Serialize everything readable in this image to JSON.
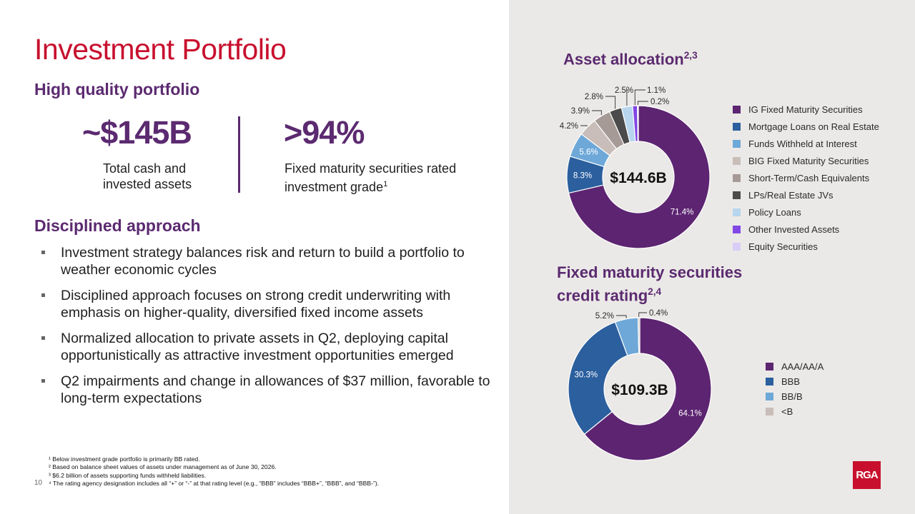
{
  "header": {
    "title": "Investment Portfolio"
  },
  "high_quality": {
    "heading": "High quality portfolio",
    "stats": [
      {
        "value": "~$145B",
        "description": "Total cash and invested assets"
      },
      {
        "value": ">94%",
        "description": "Fixed maturity securities rated investment grade",
        "footnote": "1"
      }
    ]
  },
  "disciplined": {
    "heading": "Disciplined approach",
    "bullets": [
      "Investment strategy balances risk and return to build a portfolio to weather economic cycles",
      "Disciplined approach focuses on strong credit underwriting with emphasis on higher-quality, diversified fixed income assets",
      "Normalized allocation to private assets in Q2, deploying capital opportunistically as attractive investment opportunities emerged",
      "Q2 impairments and change in allowances of $37 million, favorable to long-term expectations"
    ]
  },
  "footnotes": [
    "¹ Below investment grade portfolio is primarily BB rated.",
    "² Based on balance sheet values of assets under management as of June 30, 2026.",
    "³ $6.2 billion of assets supporting funds withheld liabilities.",
    "⁴ The rating agency designation includes all “+” or “-” at that rating level (e.g., “BBB” includes “BBB+”, “BBB”, and “BBB-”)."
  ],
  "page_number": "10",
  "logo_text": "RGA",
  "chart_data": [
    {
      "type": "pie",
      "title": "Asset allocation",
      "title_sup": "2,3",
      "center_label": "$144.6B",
      "categories": [
        "IG Fixed Maturity Securities",
        "Mortgage Loans on Real Estate",
        "Funds Withheld at Interest",
        "BIG Fixed Maturity Securities",
        "Short-Term/Cash Equivalents",
        "LPs/Real Estate JVs",
        "Policy Loans",
        "Other Invested Assets",
        "Equity Securities"
      ],
      "values": [
        71.4,
        8.3,
        5.6,
        4.2,
        3.9,
        2.8,
        2.5,
        1.1,
        0.2
      ],
      "value_labels": [
        "71.4%",
        "8.3%",
        "5.6%",
        "4.2%",
        "3.9%",
        "2.8%",
        "2.5%",
        "1.1%",
        "0.2%"
      ],
      "colors": [
        "#5c2471",
        "#2b5f9e",
        "#6ea8d8",
        "#c8bdb8",
        "#a59a96",
        "#4b4b4b",
        "#b7d6ee",
        "#8247e5",
        "#d9cdf7"
      ],
      "legend_position": "right"
    },
    {
      "type": "pie",
      "title": "Fixed maturity securities credit rating",
      "title_sup": "2,4",
      "center_label": "$109.3B",
      "categories": [
        "AAA/AA/A",
        "BBB",
        "BB/B",
        "<B"
      ],
      "values": [
        64.1,
        30.3,
        5.2,
        0.4
      ],
      "value_labels": [
        "64.1%",
        "30.3%",
        "5.2%",
        "0.4%"
      ],
      "colors": [
        "#5c2471",
        "#2b5f9e",
        "#6ea8d8",
        "#c8bdb8"
      ],
      "legend_position": "right"
    }
  ]
}
